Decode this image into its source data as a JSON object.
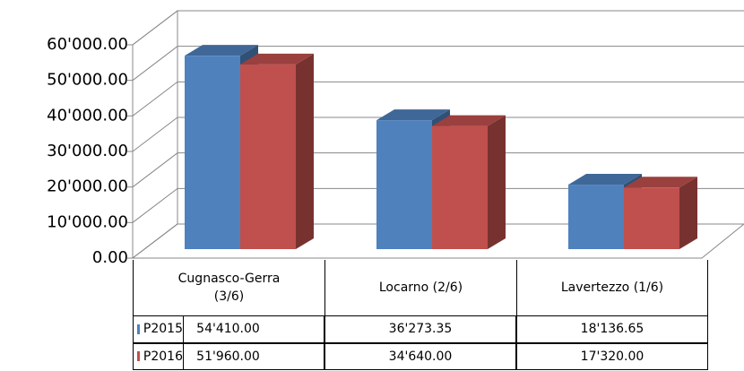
{
  "chart_data": {
    "type": "bar3d",
    "categories": [
      "Cugnasco-Gerra (3/6)",
      "Locarno (2/6)",
      "Lavertezzo (1/6)"
    ],
    "series": [
      {
        "name": "P2015",
        "color": "#4f81bd",
        "values": [
          54410,
          36273.35,
          18136.65
        ],
        "value_labels": [
          "54'410.00",
          "36'273.35",
          "18'136.65"
        ]
      },
      {
        "name": "P2016",
        "color": "#c0504d",
        "values": [
          51960,
          34640,
          17320
        ],
        "value_labels": [
          "51'960.00",
          "34'640.00",
          "17'320.00"
        ]
      }
    ],
    "ylim": [
      0,
      60000
    ],
    "yticks": [
      {
        "value": 0,
        "label": "0.00"
      },
      {
        "value": 10000,
        "label": "10'000.00"
      },
      {
        "value": 20000,
        "label": "20'000.00"
      },
      {
        "value": 30000,
        "label": "30'000.00"
      },
      {
        "value": 40000,
        "label": "40'000.00"
      },
      {
        "value": 50000,
        "label": "50'000.00"
      },
      {
        "value": 60000,
        "label": "60'000.00"
      }
    ],
    "grid": true,
    "data_table": true
  }
}
